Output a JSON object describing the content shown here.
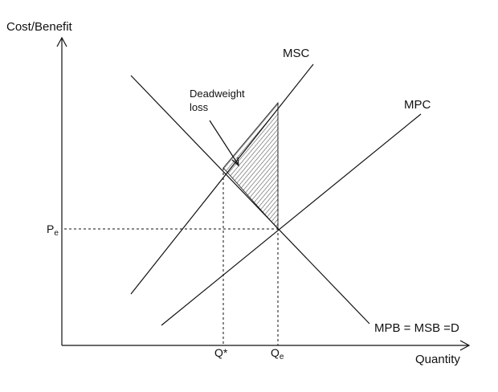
{
  "labels": {
    "y_axis": "Cost/Benefit",
    "x_axis": "Quantity",
    "msc": "MSC",
    "mpc": "MPC",
    "demand": "MPB = MSB =D",
    "dwl_line1": "Deadweight",
    "dwl_line2": "loss",
    "price_main": "P",
    "price_sub": "e",
    "q_star": "Q*",
    "qe_main": "Q",
    "qe_sub": "e"
  },
  "colors": {
    "ink": "#111111",
    "hatch": "#555555"
  }
}
